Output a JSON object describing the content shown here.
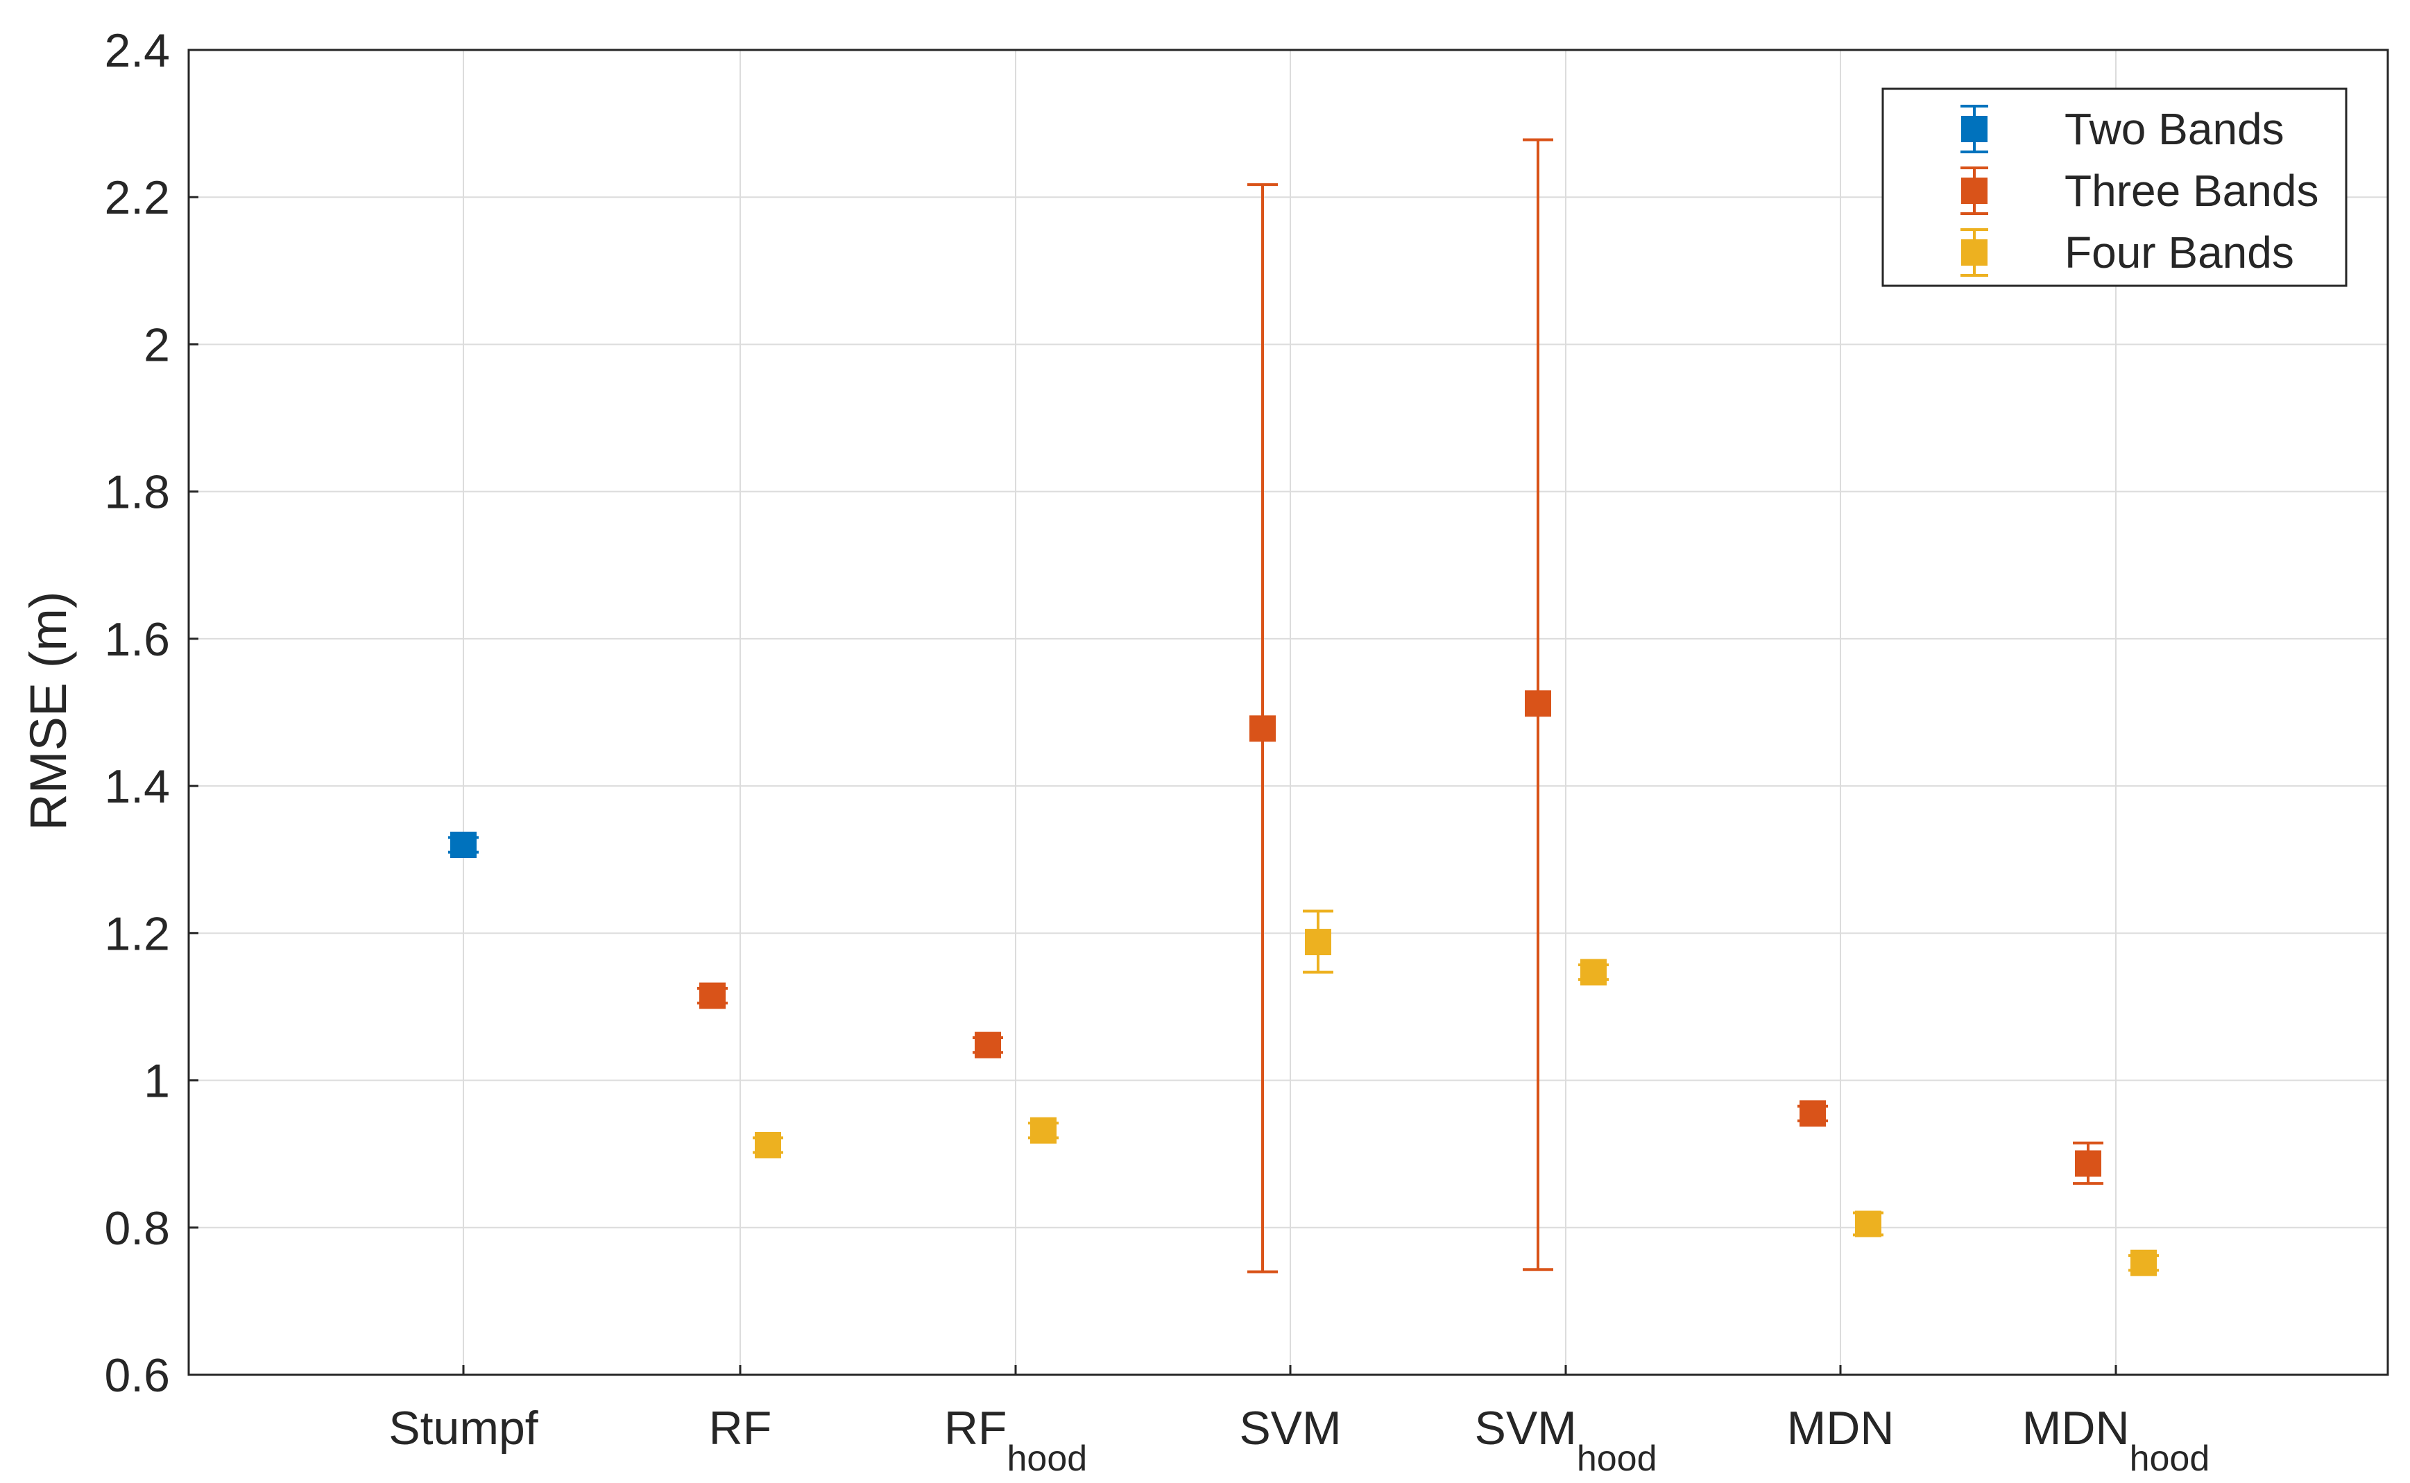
{
  "chart_data": {
    "type": "errorbar",
    "title": "",
    "xlabel": "",
    "ylabel": "RMSE (m)",
    "ylim": [
      0.6,
      2.4
    ],
    "yticks": [
      "0.6",
      "0.8",
      "1",
      "1.2",
      "1.4",
      "1.6",
      "1.8",
      "2",
      "2.2",
      "2.4"
    ],
    "grid": true,
    "legend_position": "top-right",
    "categories": [
      {
        "base": "Stumpf",
        "sub": ""
      },
      {
        "base": "RF",
        "sub": ""
      },
      {
        "base": "RF",
        "sub": "hood"
      },
      {
        "base": "SVM",
        "sub": ""
      },
      {
        "base": "SVM",
        "sub": "hood"
      },
      {
        "base": "MDN",
        "sub": ""
      },
      {
        "base": "MDN",
        "sub": "hood"
      }
    ],
    "series": [
      {
        "name": "Two Bands",
        "color": "#0072BD",
        "points": [
          {
            "category": 0,
            "value": 1.32,
            "low": 1.31,
            "high": 1.33
          }
        ]
      },
      {
        "name": "Three Bands",
        "color": "#D95319",
        "points": [
          {
            "category": 1,
            "value": 1.115,
            "low": 1.105,
            "high": 1.125
          },
          {
            "category": 2,
            "value": 1.048,
            "low": 1.038,
            "high": 1.058
          },
          {
            "category": 3,
            "value": 1.478,
            "low": 0.74,
            "high": 2.217
          },
          {
            "category": 4,
            "value": 1.512,
            "low": 0.743,
            "high": 2.278
          },
          {
            "category": 5,
            "value": 0.955,
            "low": 0.945,
            "high": 0.965
          },
          {
            "category": 6,
            "value": 0.887,
            "low": 0.86,
            "high": 0.915
          }
        ]
      },
      {
        "name": "Four Bands",
        "color": "#EDB120",
        "points": [
          {
            "category": 1,
            "value": 0.912,
            "low": 0.902,
            "high": 0.922
          },
          {
            "category": 2,
            "value": 0.932,
            "low": 0.922,
            "high": 0.942
          },
          {
            "category": 3,
            "value": 1.188,
            "low": 1.147,
            "high": 1.23
          },
          {
            "category": 4,
            "value": 1.147,
            "low": 1.137,
            "high": 1.157
          },
          {
            "category": 5,
            "value": 0.805,
            "low": 0.79,
            "high": 0.82
          },
          {
            "category": 6,
            "value": 0.752,
            "low": 0.742,
            "high": 0.762
          }
        ]
      }
    ]
  }
}
